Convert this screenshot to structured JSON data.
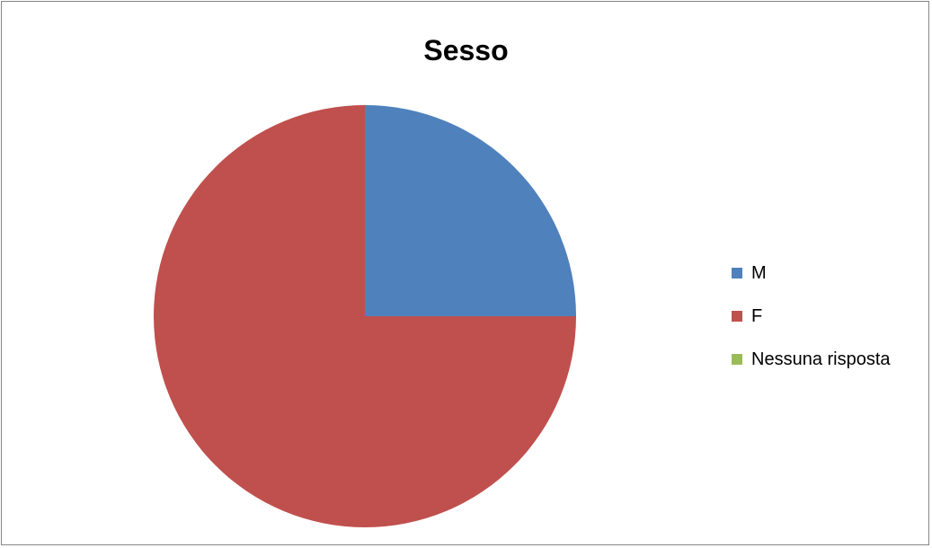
{
  "chart_data": {
    "type": "pie",
    "title": "Sesso",
    "categories": [
      "M",
      "F",
      "Nessuna risposta"
    ],
    "values": [
      25,
      75,
      0
    ],
    "colors": [
      "#4f81bd",
      "#c0504d",
      "#9bbb59"
    ],
    "start_angle_deg": 0,
    "direction": "clockwise",
    "legend_position": "right"
  }
}
